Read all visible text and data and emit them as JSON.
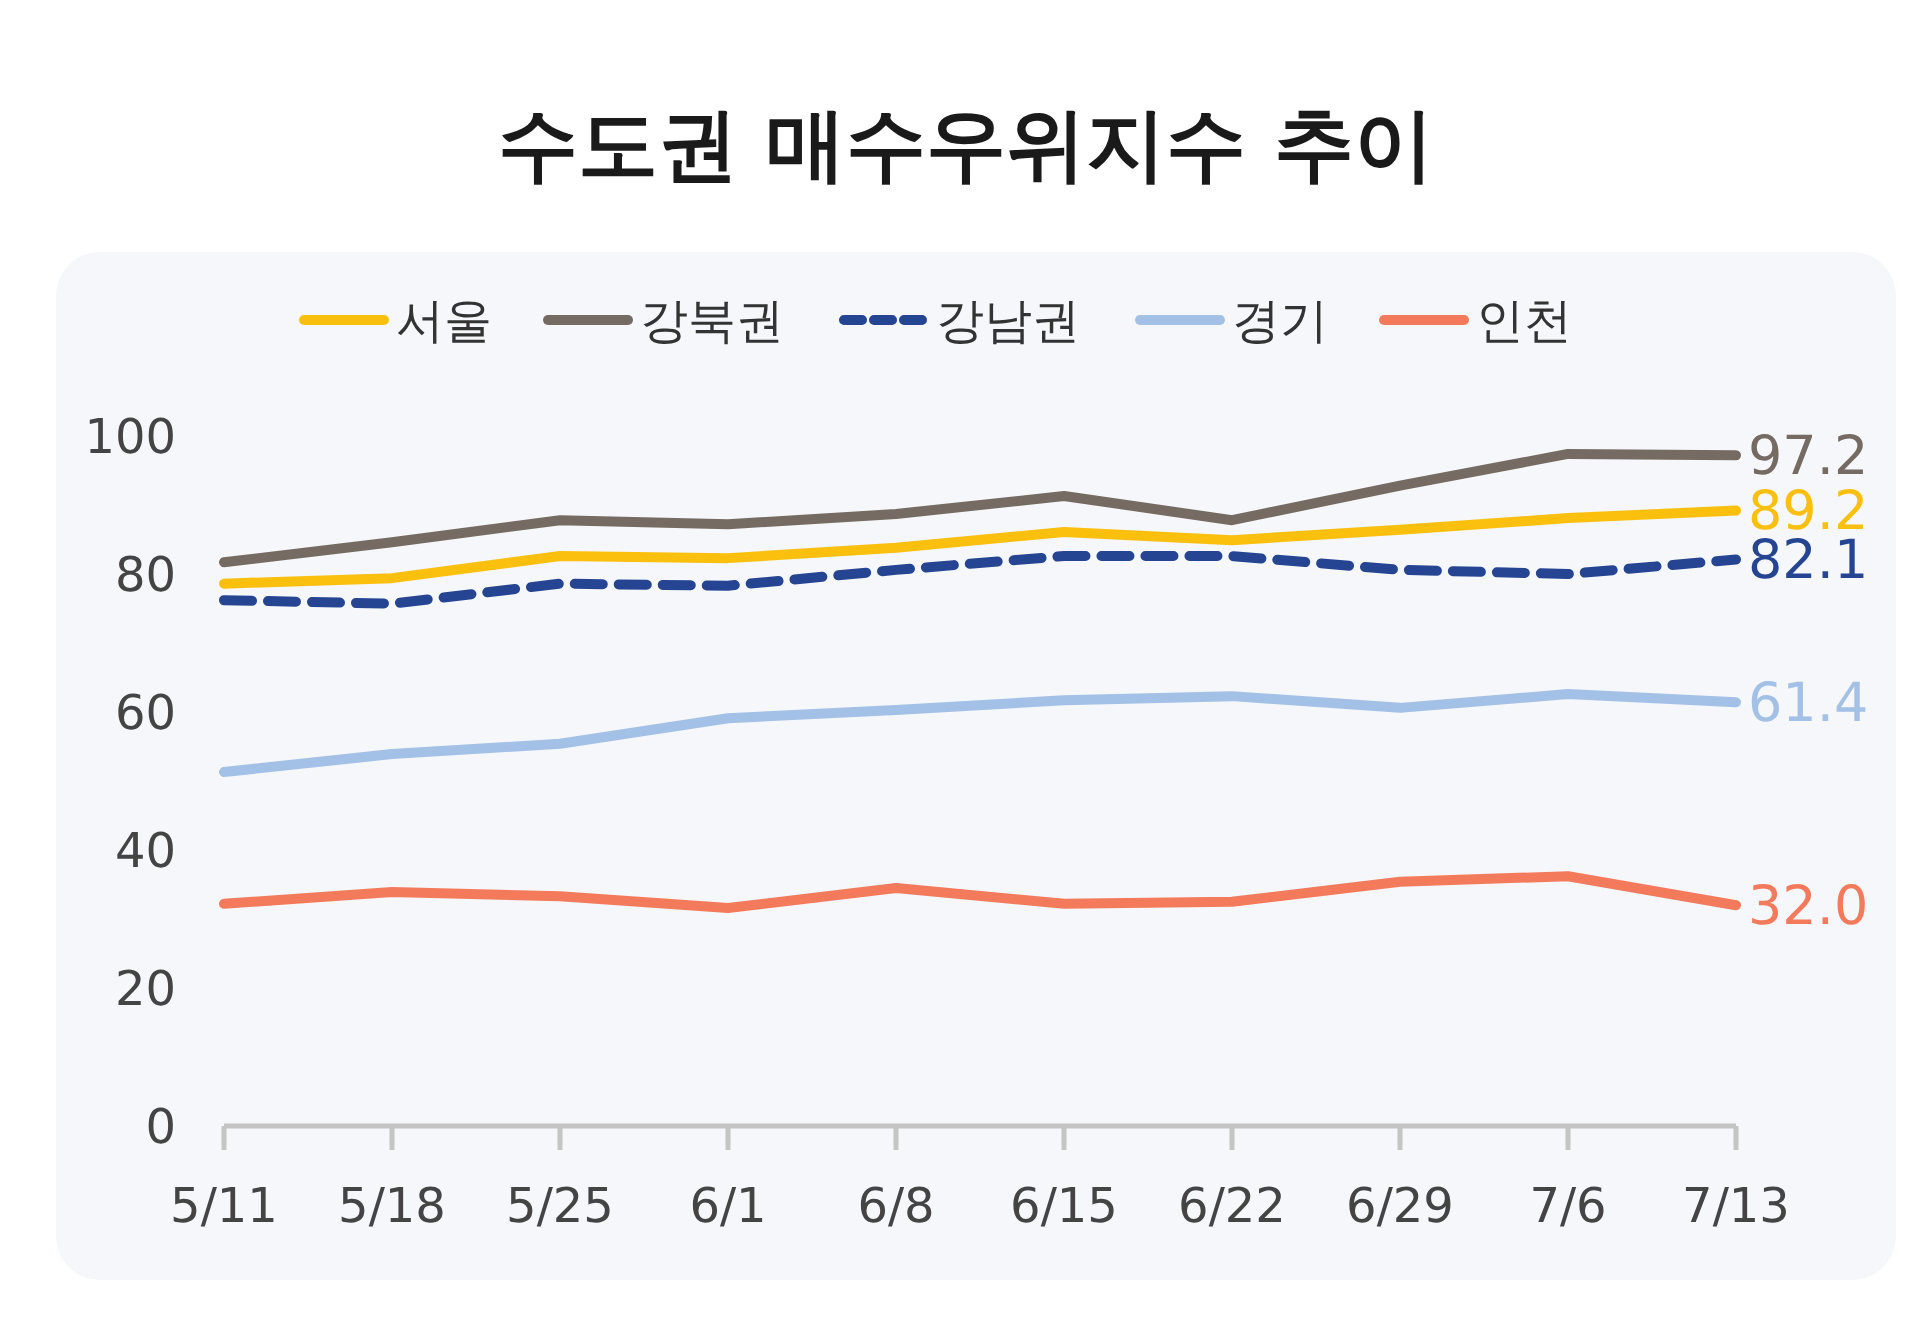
{
  "chart_data": {
    "type": "line",
    "title": "수도권 매수우위지수 추이",
    "categories": [
      "5/11",
      "5/18",
      "5/25",
      "6/1",
      "6/8",
      "6/15",
      "6/22",
      "6/29",
      "7/6",
      "7/13"
    ],
    "series": [
      {
        "name": "서울",
        "color": "#fbbf0e",
        "values": [
          78.6,
          79.4,
          82.6,
          82.3,
          83.8,
          86.1,
          84.9,
          86.4,
          88.1,
          89.2
        ],
        "value_labels": [
          null,
          null,
          null,
          null,
          null,
          null,
          null,
          null,
          null,
          "89.2"
        ]
      },
      {
        "name": "강북권",
        "color": "#756b62",
        "values": [
          81.7,
          84.6,
          87.8,
          87.2,
          88.7,
          91.3,
          87.8,
          92.8,
          97.4,
          97.2
        ],
        "value_labels": [
          null,
          null,
          null,
          null,
          null,
          null,
          null,
          null,
          null,
          "97.2"
        ]
      },
      {
        "name": "강남권",
        "color": "#254592",
        "line_style": "dashed",
        "values": [
          76.2,
          75.7,
          78.6,
          78.3,
          80.6,
          82.6,
          82.6,
          80.6,
          80.0,
          82.1
        ],
        "value_labels": [
          null,
          null,
          null,
          null,
          null,
          null,
          null,
          null,
          null,
          "82.1"
        ]
      },
      {
        "name": "경기",
        "color": "#a3c0e6",
        "values": [
          51.3,
          53.9,
          55.4,
          59.1,
          60.3,
          61.7,
          62.3,
          60.6,
          62.6,
          61.4
        ],
        "value_labels": [
          null,
          null,
          null,
          null,
          null,
          null,
          null,
          null,
          null,
          "61.4"
        ]
      },
      {
        "name": "인천",
        "color": "#f47a5c",
        "values": [
          32.2,
          33.9,
          33.3,
          31.6,
          34.5,
          32.2,
          32.5,
          35.4,
          36.2,
          32.0
        ],
        "value_labels": [
          null,
          null,
          null,
          null,
          null,
          null,
          null,
          null,
          null,
          "32.0"
        ]
      }
    ],
    "ylim": [
      0,
      100
    ],
    "yticks": [
      0,
      20,
      40,
      60,
      80,
      100
    ],
    "grid": false,
    "legend": "top",
    "marker": "none",
    "line_style": "solid"
  }
}
